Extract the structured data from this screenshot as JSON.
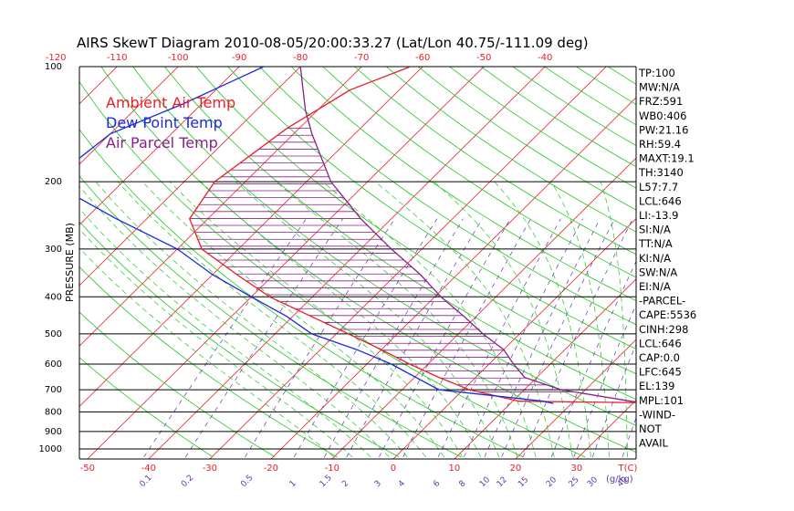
{
  "chart_data": {
    "type": "skewt",
    "title": "AIRS SkewT Diagram 2010-08-05/20:00:33.27 (Lat/Lon 40.75/-111.09 deg)",
    "ylabel": "PRESSURE (MB)",
    "pressure_ticks": [
      100,
      200,
      300,
      400,
      500,
      600,
      700,
      800,
      900,
      1000
    ],
    "top_temp_ticks": [
      "-120",
      "-110",
      "-100",
      "-90",
      "-80",
      "-70",
      "-60",
      "-50",
      "-40"
    ],
    "bottom_temp_ticks": [
      "-50",
      "-40",
      "-30",
      "-20",
      "-10",
      "0",
      "10",
      "20",
      "30"
    ],
    "bottom_temp_unit": "T(C)",
    "mixing_ratio_labels": [
      "0.1",
      "0.2",
      "0.5",
      "1",
      "1.5",
      "2",
      "3",
      "4",
      "6",
      "8",
      "10",
      "12",
      "15",
      "20",
      "25",
      "30",
      "40"
    ],
    "mixing_ratio_unit": "(g/kg)",
    "legend": [
      {
        "label": "Ambient Air Temp",
        "color": "#e8202a"
      },
      {
        "label": "Dew Point Temp",
        "color": "#1a2ad8"
      },
      {
        "label": "Air Parcel Temp",
        "color": "#8a1f8a"
      }
    ],
    "series": [
      {
        "name": "Ambient Air Temp",
        "color": "#e8202a",
        "points": [
          [
            100,
            -62
          ],
          [
            115,
            -68
          ],
          [
            145,
            -72
          ],
          [
            200,
            -75
          ],
          [
            250,
            -73
          ],
          [
            300,
            -66
          ],
          [
            350,
            -56
          ],
          [
            400,
            -47
          ],
          [
            450,
            -37
          ],
          [
            500,
            -28
          ],
          [
            550,
            -20
          ],
          [
            600,
            -13
          ],
          [
            650,
            -6
          ],
          [
            700,
            1
          ],
          [
            750,
            11
          ],
          [
            757,
            31
          ]
        ]
      },
      {
        "name": "Dew Point Temp",
        "color": "#1a2ad8",
        "points": [
          [
            100,
            -86
          ],
          [
            125,
            -93
          ],
          [
            150,
            -100
          ],
          [
            200,
            -102
          ],
          [
            250,
            -85
          ],
          [
            300,
            -70
          ],
          [
            350,
            -60
          ],
          [
            400,
            -50
          ],
          [
            450,
            -41
          ],
          [
            500,
            -34
          ],
          [
            550,
            -24
          ],
          [
            600,
            -16
          ],
          [
            700,
            -4
          ],
          [
            750,
            15
          ],
          [
            760,
            17
          ]
        ]
      },
      {
        "name": "Air Parcel Temp",
        "color": "#8a1f8a",
        "points": [
          [
            100,
            -80
          ],
          [
            130,
            -72
          ],
          [
            150,
            -67
          ],
          [
            200,
            -56
          ],
          [
            250,
            -45
          ],
          [
            300,
            -35
          ],
          [
            350,
            -26
          ],
          [
            400,
            -19
          ],
          [
            450,
            -12
          ],
          [
            500,
            -6
          ],
          [
            550,
            0
          ],
          [
            600,
            4
          ],
          [
            650,
            8
          ],
          [
            700,
            16
          ],
          [
            757,
            31
          ]
        ]
      }
    ],
    "indices": [
      "TP:100",
      "MW:N/A",
      "FRZ:591",
      "WB0:406",
      "PW:21.16",
      "RH:59.4",
      "MAXT:19.1",
      "TH:3140",
      "L57:7.7",
      "LCL:646",
      "LI:-13.9",
      "SI:N/A",
      "TT:N/A",
      "KI:N/A",
      "SW:N/A",
      "EI:N/A",
      "-PARCEL-",
      "CAPE:5536",
      "CINH:298",
      "LCL:646",
      "CAP:0.0",
      "LFC:645",
      "EL:139",
      "MPL:101",
      "-WIND-",
      "NOT",
      "AVAIL"
    ],
    "colors": {
      "isotherm": "#e8202a",
      "dry_adiabat": "#22c822",
      "moist_adiabat": "#22c822",
      "mixing_ratio": "#5a3aa8",
      "cape_hatch": "#8a1f8a",
      "frame": "#000000"
    }
  }
}
